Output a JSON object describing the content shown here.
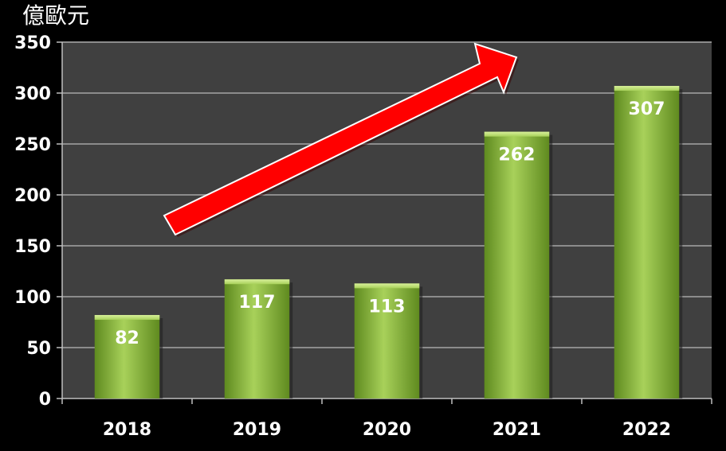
{
  "chart_data": {
    "type": "bar",
    "unit_label": "億歐元",
    "categories": [
      "2018",
      "2019",
      "2020",
      "2021",
      "2022"
    ],
    "values": [
      82,
      117,
      113,
      262,
      307
    ],
    "data_labels": [
      "82",
      "117",
      "113",
      "262",
      "307"
    ],
    "ylim": [
      0,
      350
    ],
    "yticks": [
      0,
      50,
      100,
      150,
      200,
      250,
      300,
      350
    ],
    "grid": true,
    "legend": "none",
    "colors": {
      "background": "#000000",
      "plot_area": "#404040",
      "gridline": "#8c8c8c",
      "bar_light": "#a8d15a",
      "bar_dark": "#5f8a1f",
      "arrow": "#ff0000",
      "arrow_outline": "#ffffff",
      "text": "#ffffff"
    },
    "annotation": {
      "type": "arrow",
      "direction": "up-right",
      "color": "#ff0000"
    }
  }
}
